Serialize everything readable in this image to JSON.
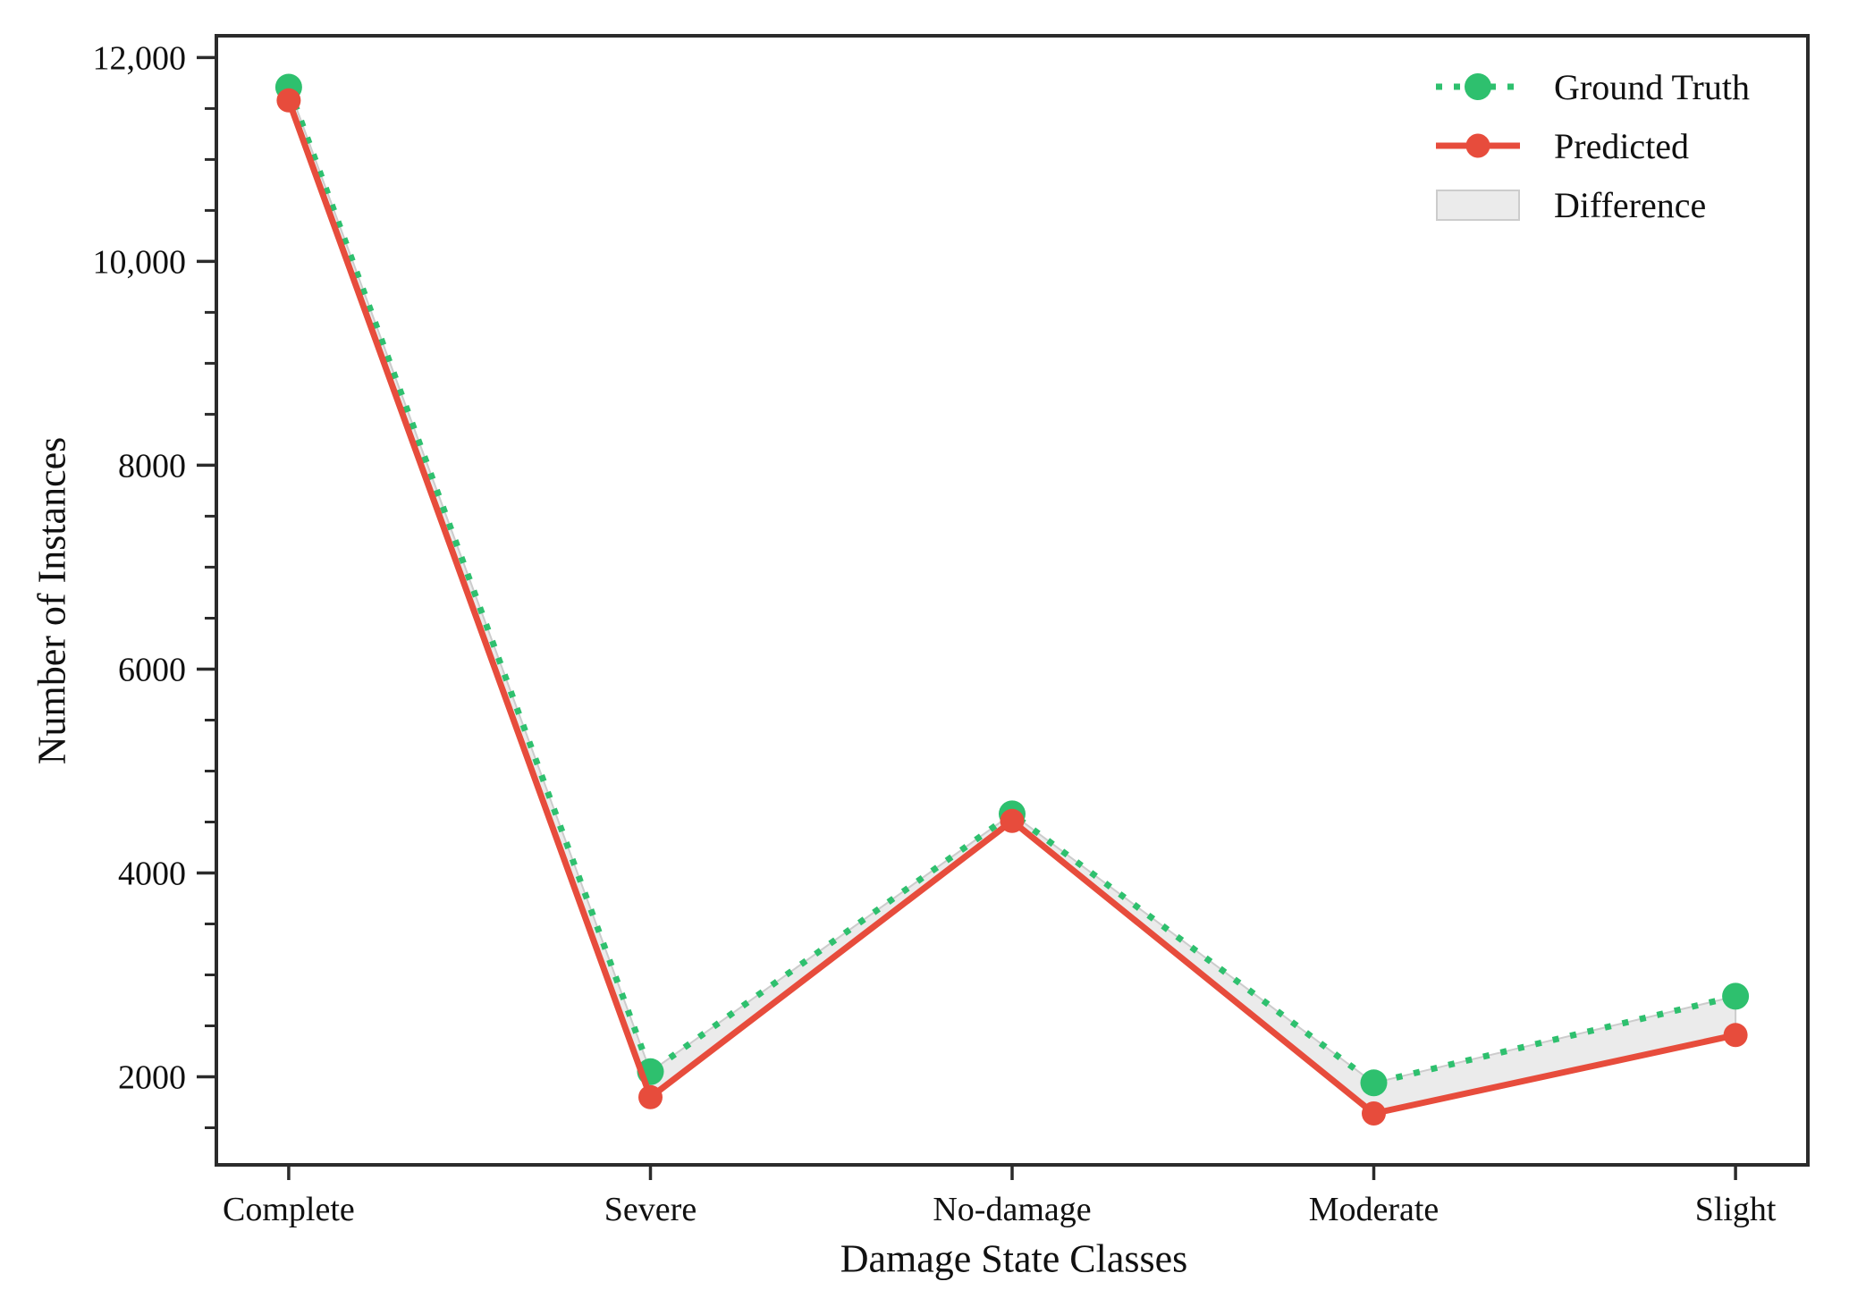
{
  "chart_data": {
    "type": "line",
    "title": "",
    "xlabel": "Damage State Classes",
    "ylabel": "Number of Instances",
    "categories": [
      "Complete",
      "Severe",
      "No-damage",
      "Moderate",
      "Slight"
    ],
    "series": [
      {
        "name": "Ground Truth",
        "values": [
          11710,
          2050,
          4580,
          1940,
          2790
        ],
        "color": "#2ec06e",
        "line_style": "dotted",
        "marker": "circle",
        "marker_radius": 15
      },
      {
        "name": "Predicted",
        "values": [
          11580,
          1800,
          4510,
          1640,
          2410
        ],
        "color": "#e74c3c",
        "line_style": "solid",
        "marker": "circle",
        "marker_radius": 13.5
      }
    ],
    "difference_band": {
      "label": "Difference",
      "fill": "#ebebeb",
      "edge": "#cccccc"
    },
    "ylim": [
      1136,
      12214
    ],
    "y_major_ticks": [
      {
        "value": 2000,
        "label": "2000"
      },
      {
        "value": 4000,
        "label": "4000"
      },
      {
        "value": 6000,
        "label": "6000"
      },
      {
        "value": 8000,
        "label": "8000"
      },
      {
        "value": 10000,
        "label": "10,000"
      },
      {
        "value": 12000,
        "label": "12,000"
      }
    ],
    "y_minor_step": 500,
    "grid": false,
    "legend_position": "upper right",
    "axis_color": "#2b2b2b",
    "text_color": "#111111"
  }
}
